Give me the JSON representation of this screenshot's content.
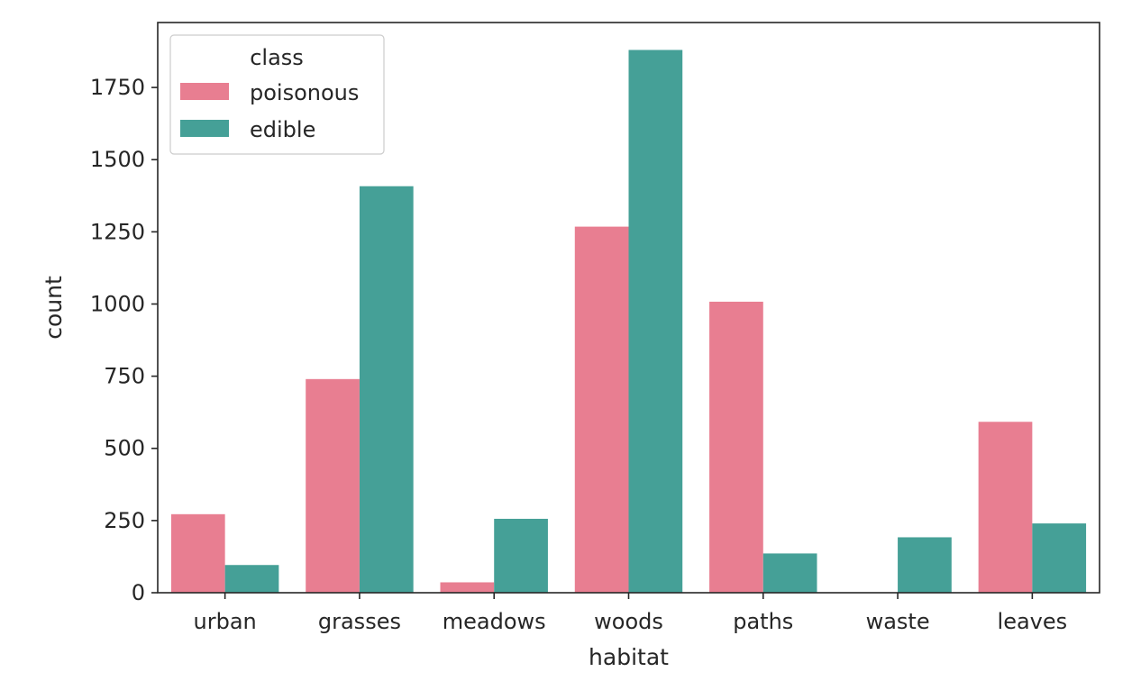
{
  "chart_data": {
    "type": "bar",
    "categories": [
      "urban",
      "grasses",
      "meadows",
      "woods",
      "paths",
      "waste",
      "leaves"
    ],
    "series": [
      {
        "name": "poisonous",
        "color": "#E87E91",
        "values": [
          272,
          740,
          36,
          1268,
          1008,
          0,
          592
        ]
      },
      {
        "name": "edible",
        "color": "#45A097",
        "values": [
          96,
          1408,
          256,
          1880,
          136,
          192,
          240
        ]
      }
    ],
    "xlabel": "habitat",
    "ylabel": "count",
    "ylim": [
      0,
      1975
    ],
    "yticks": [
      0,
      250,
      500,
      750,
      1000,
      1250,
      1500,
      1750
    ],
    "legend": {
      "title": "class",
      "placement": "top-left"
    },
    "grid": false
  }
}
